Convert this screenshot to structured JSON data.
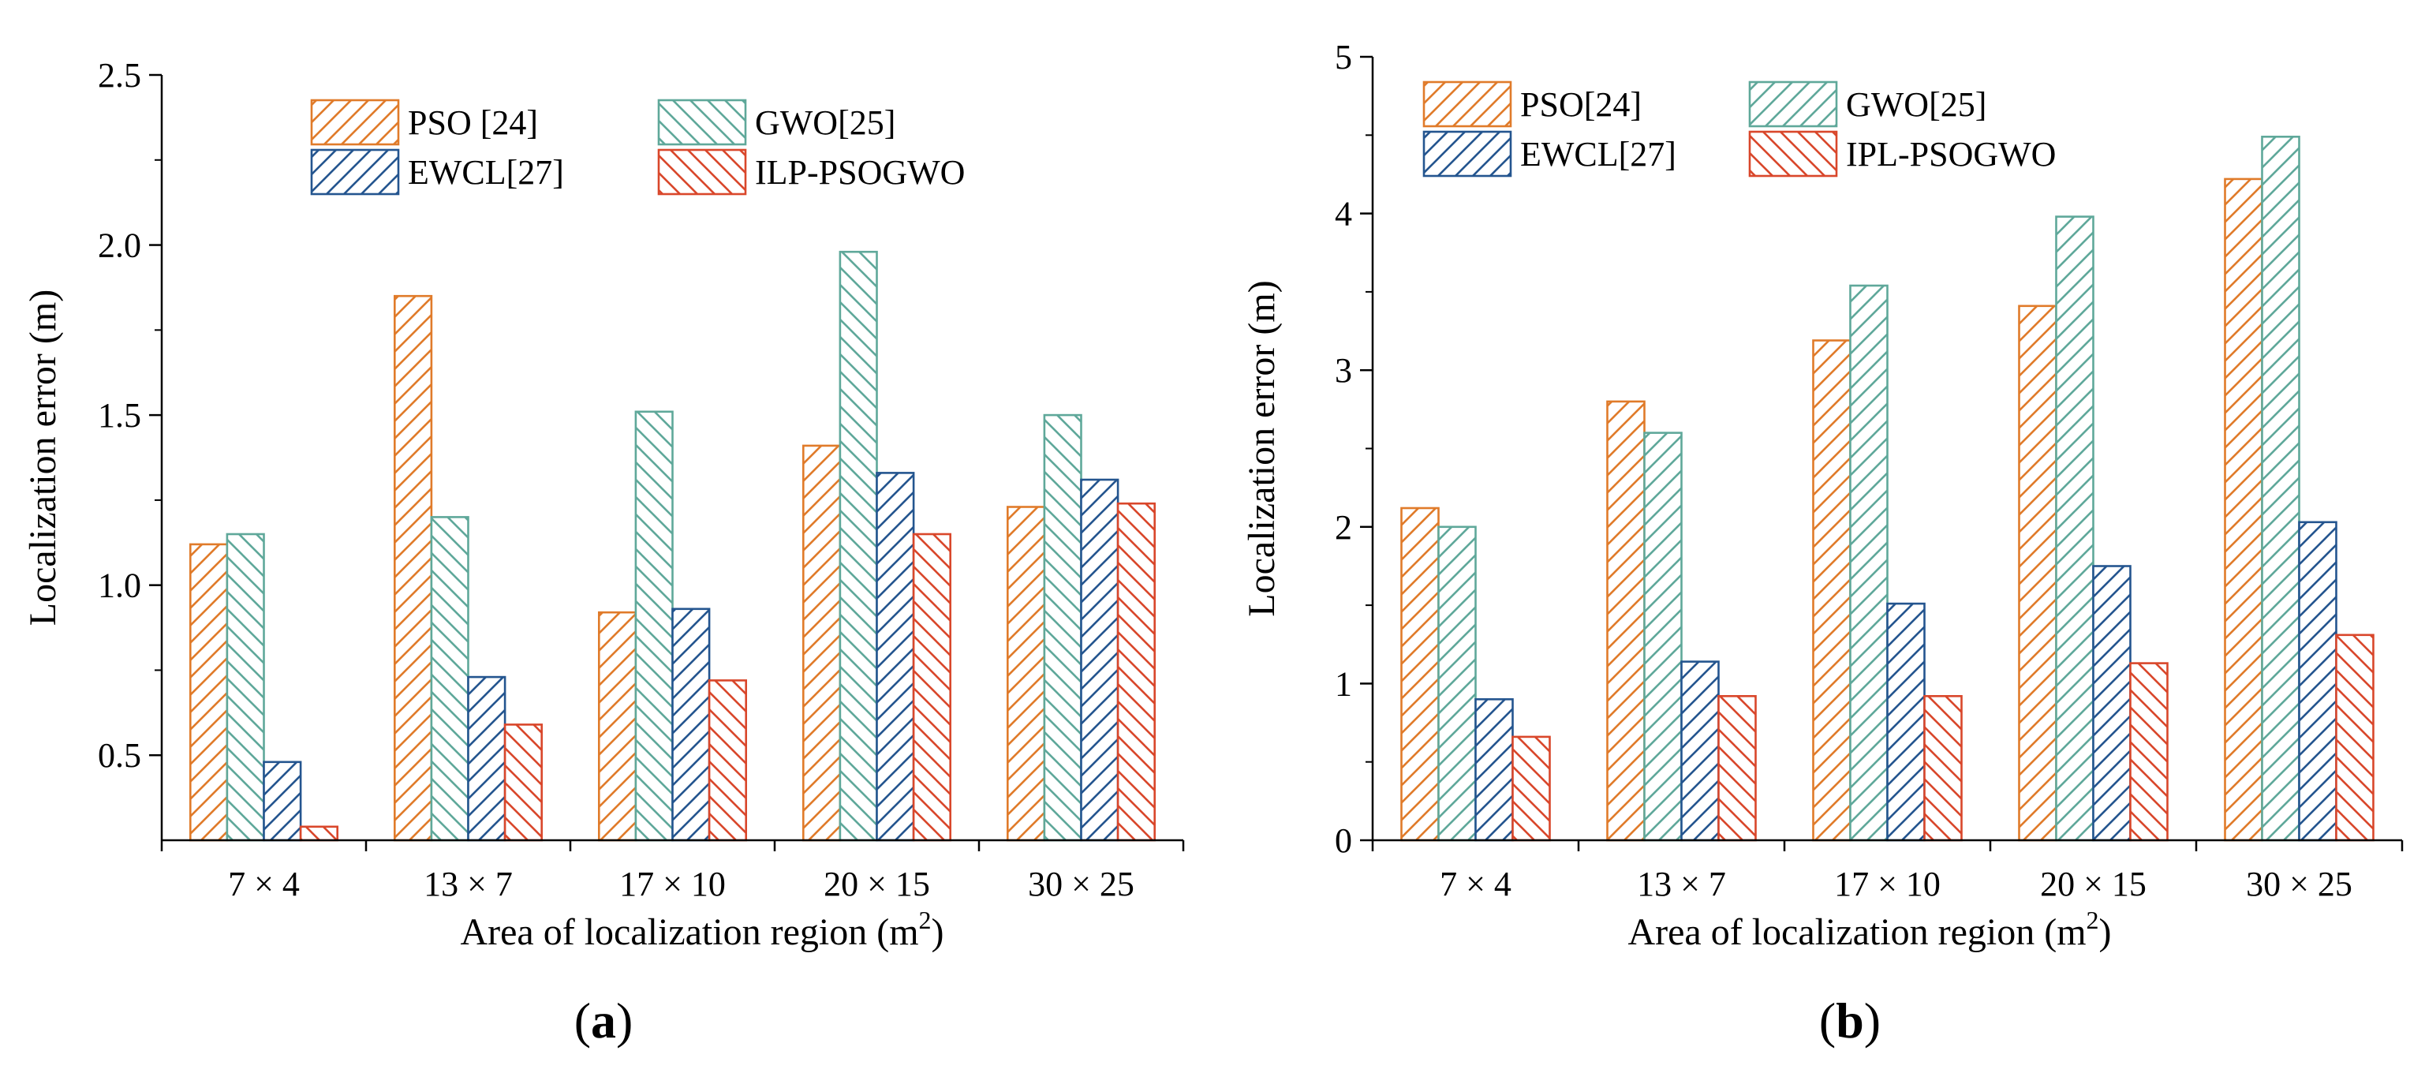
{
  "chart_data": [
    {
      "type": "bar",
      "panel_label": "(a)",
      "xlabel": "Area of localization region (m",
      "xlabel_sup": "2",
      "xlabel_end": ")",
      "ylabel": "Localization error (m)",
      "categories": [
        "7 × 4",
        "13 × 7",
        "17 × 10",
        "20 × 15",
        "30 × 25"
      ],
      "ylim": [
        0.25,
        2.5
      ],
      "yticks": [
        0.5,
        1.0,
        1.5,
        2.0,
        2.5
      ],
      "ytick_labels": [
        "0.5",
        "1.0",
        "1.5",
        "2.0",
        "2.5"
      ],
      "legend_position": "top-center",
      "grid": false,
      "series": [
        {
          "name": "PSO [24]",
          "color": "#E07B2A",
          "hatch": "forward",
          "values": [
            1.12,
            1.85,
            0.92,
            1.41,
            1.23
          ]
        },
        {
          "name": "GWO[25]",
          "color": "#5FA89A",
          "hatch": "back",
          "values": [
            1.15,
            1.2,
            1.51,
            1.98,
            1.5
          ]
        },
        {
          "name": "EWCL[27]",
          "color": "#24558F",
          "hatch": "forward",
          "values": [
            0.48,
            0.73,
            0.93,
            1.33,
            1.31
          ]
        },
        {
          "name": "ILP-PSOGWO",
          "color": "#D9472B",
          "hatch": "back",
          "values": [
            0.29,
            0.59,
            0.72,
            1.15,
            1.24
          ]
        }
      ]
    },
    {
      "type": "bar",
      "panel_label": "(b)",
      "xlabel": "Area of localization region (m",
      "xlabel_sup": "2",
      "xlabel_end": ")",
      "ylabel": "Localization error (m)",
      "categories": [
        "7 × 4",
        "13 × 7",
        "17 × 10",
        "20 × 15",
        "30 × 25"
      ],
      "ylim": [
        0,
        5
      ],
      "yticks": [
        0,
        1,
        2,
        3,
        4,
        5
      ],
      "ytick_labels": [
        "0",
        "1",
        "2",
        "3",
        "4",
        "5"
      ],
      "legend_position": "top-left",
      "grid": false,
      "series": [
        {
          "name": "PSO[24]",
          "color": "#E07B2A",
          "hatch": "forward",
          "values": [
            2.12,
            2.8,
            3.19,
            3.41,
            4.22
          ]
        },
        {
          "name": "GWO[25]",
          "color": "#5FA89A",
          "hatch": "forward",
          "values": [
            2.0,
            2.6,
            3.54,
            3.98,
            4.49
          ]
        },
        {
          "name": "EWCL[27]",
          "color": "#24558F",
          "hatch": "forward",
          "values": [
            0.9,
            1.14,
            1.51,
            1.75,
            2.03
          ]
        },
        {
          "name": "IPL-PSOGWO",
          "color": "#D9472B",
          "hatch": "back",
          "values": [
            0.66,
            0.92,
            0.92,
            1.13,
            1.31
          ]
        }
      ]
    }
  ]
}
